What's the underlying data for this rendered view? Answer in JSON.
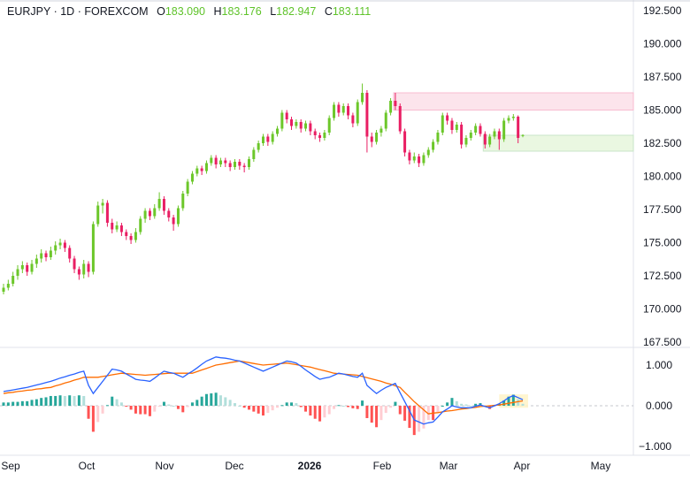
{
  "header": {
    "symbol": "EURJPY",
    "sep1": "·",
    "interval": "1D",
    "sep2": "·",
    "exchange": "FOREXCOM",
    "o_label": "O",
    "o": "183.090",
    "h_label": "H",
    "h": "183.176",
    "l_label": "L",
    "l": "182.947",
    "c_label": "C",
    "c": "183.111"
  },
  "colors": {
    "up": "#6cc72a",
    "down": "#e91e63",
    "macd": "#2962ff",
    "signal": "#ff6d00",
    "hist_up_strong": "#26a69a",
    "hist_up_weak": "#b2dfdb",
    "hist_down_strong": "#ff5252",
    "hist_down_weak": "#ffcdd2",
    "supply_zone": "#fce4ec",
    "demand_zone": "#eaf7e1"
  },
  "time_axis": [
    {
      "label": "Sep"
    },
    {
      "label": "Oct"
    },
    {
      "label": "Nov"
    },
    {
      "label": "Dec"
    },
    {
      "label": "2026",
      "bold": true
    },
    {
      "label": "Feb"
    },
    {
      "label": "Mar"
    },
    {
      "label": "Apr"
    },
    {
      "label": "May"
    }
  ],
  "price_axis": [
    "192.500",
    "190.000",
    "187.500",
    "185.000",
    "182.500",
    "180.000",
    "177.500",
    "175.000",
    "172.500",
    "170.000",
    "167.500"
  ],
  "macd_axis": [
    "1.000",
    "0.000",
    "−1.000"
  ],
  "chart_data": [
    {
      "type": "candlestick",
      "ylim": [
        167.5,
        192.5
      ],
      "zones": [
        {
          "kind": "supply",
          "from": 185.0,
          "to": 186.3
        },
        {
          "kind": "demand",
          "from": 181.9,
          "to": 183.1
        }
      ],
      "candles_ohlc": [
        [
          171.3,
          171.9,
          171.1,
          171.6
        ],
        [
          171.6,
          172.2,
          171.4,
          171.9
        ],
        [
          171.9,
          172.8,
          171.7,
          172.5
        ],
        [
          172.5,
          173.3,
          172.2,
          173.0
        ],
        [
          173.0,
          173.6,
          172.7,
          173.3
        ],
        [
          173.3,
          173.5,
          172.5,
          172.8
        ],
        [
          172.8,
          173.7,
          172.6,
          173.4
        ],
        [
          173.4,
          174.1,
          173.1,
          173.8
        ],
        [
          173.8,
          174.5,
          173.5,
          174.2
        ],
        [
          174.2,
          174.4,
          173.6,
          173.9
        ],
        [
          173.9,
          174.7,
          173.7,
          174.4
        ],
        [
          174.4,
          175.1,
          174.1,
          174.8
        ],
        [
          174.8,
          175.3,
          174.5,
          175.0
        ],
        [
          175.0,
          175.2,
          174.3,
          174.6
        ],
        [
          174.6,
          174.8,
          173.5,
          173.8
        ],
        [
          173.8,
          174.0,
          172.7,
          173.0
        ],
        [
          173.0,
          173.2,
          172.2,
          172.6
        ],
        [
          172.6,
          173.7,
          172.3,
          173.4
        ],
        [
          173.4,
          173.6,
          172.4,
          172.8
        ],
        [
          172.8,
          176.6,
          172.6,
          176.4
        ],
        [
          176.4,
          178.1,
          176.2,
          177.8
        ],
        [
          177.8,
          178.3,
          177.2,
          178.0
        ],
        [
          178.0,
          178.2,
          176.2,
          176.5
        ],
        [
          176.5,
          176.8,
          175.7,
          176.0
        ],
        [
          176.0,
          176.6,
          175.8,
          176.3
        ],
        [
          176.3,
          176.5,
          175.5,
          175.8
        ],
        [
          175.8,
          176.0,
          175.2,
          175.5
        ],
        [
          175.5,
          175.7,
          174.9,
          175.2
        ],
        [
          175.2,
          176.1,
          175.0,
          175.8
        ],
        [
          175.8,
          177.0,
          175.6,
          176.8
        ],
        [
          176.8,
          177.6,
          176.5,
          177.4
        ],
        [
          177.4,
          177.6,
          176.7,
          177.0
        ],
        [
          177.0,
          177.9,
          176.8,
          177.6
        ],
        [
          177.6,
          178.8,
          177.4,
          178.3
        ],
        [
          178.3,
          178.5,
          177.1,
          177.4
        ],
        [
          177.4,
          177.6,
          176.6,
          176.9
        ],
        [
          176.9,
          177.1,
          175.9,
          176.4
        ],
        [
          176.4,
          177.8,
          176.2,
          177.6
        ],
        [
          177.6,
          178.9,
          177.4,
          178.7
        ],
        [
          178.7,
          179.8,
          178.5,
          179.6
        ],
        [
          179.6,
          180.4,
          179.4,
          180.2
        ],
        [
          180.2,
          180.8,
          180.0,
          180.6
        ],
        [
          180.6,
          180.8,
          180.1,
          180.4
        ],
        [
          180.4,
          181.2,
          180.2,
          181.0
        ],
        [
          181.0,
          181.6,
          180.8,
          181.4
        ],
        [
          181.4,
          181.6,
          180.6,
          180.9
        ],
        [
          180.9,
          181.4,
          180.7,
          181.2
        ],
        [
          181.2,
          181.4,
          180.7,
          181.0
        ],
        [
          181.0,
          181.2,
          180.4,
          180.7
        ],
        [
          180.7,
          181.3,
          180.5,
          181.1
        ],
        [
          181.1,
          181.3,
          180.5,
          180.8
        ],
        [
          180.8,
          181.0,
          180.3,
          180.7
        ],
        [
          180.7,
          181.5,
          180.5,
          181.3
        ],
        [
          181.3,
          182.2,
          181.1,
          182.0
        ],
        [
          182.0,
          182.7,
          181.8,
          182.5
        ],
        [
          182.5,
          183.2,
          182.3,
          183.0
        ],
        [
          183.0,
          183.2,
          182.3,
          182.6
        ],
        [
          182.6,
          183.4,
          182.4,
          183.2
        ],
        [
          183.2,
          183.8,
          183.0,
          183.6
        ],
        [
          183.6,
          185.0,
          183.4,
          184.8
        ],
        [
          184.8,
          185.0,
          184.0,
          184.3
        ],
        [
          184.3,
          184.5,
          183.5,
          183.8
        ],
        [
          183.8,
          184.3,
          183.6,
          184.1
        ],
        [
          184.1,
          184.3,
          183.3,
          183.6
        ],
        [
          183.6,
          184.2,
          183.4,
          184.0
        ],
        [
          184.0,
          184.2,
          183.1,
          183.4
        ],
        [
          183.4,
          183.6,
          182.8,
          183.1
        ],
        [
          183.1,
          183.3,
          182.6,
          182.9
        ],
        [
          182.9,
          183.5,
          182.7,
          183.3
        ],
        [
          183.3,
          184.6,
          183.1,
          184.4
        ],
        [
          184.4,
          185.6,
          184.2,
          185.4
        ],
        [
          185.4,
          185.6,
          184.5,
          184.8
        ],
        [
          184.8,
          185.5,
          184.6,
          185.3
        ],
        [
          185.3,
          185.5,
          184.3,
          184.6
        ],
        [
          184.6,
          184.8,
          183.7,
          184.0
        ],
        [
          184.0,
          185.8,
          183.8,
          185.6
        ],
        [
          185.6,
          187.0,
          185.4,
          186.3
        ],
        [
          186.3,
          186.5,
          181.8,
          183.0
        ],
        [
          183.0,
          183.3,
          182.2,
          182.6
        ],
        [
          182.6,
          183.5,
          182.4,
          183.3
        ],
        [
          183.3,
          183.8,
          183.0,
          183.6
        ],
        [
          183.6,
          185.0,
          183.4,
          184.8
        ],
        [
          184.8,
          185.9,
          184.6,
          185.7
        ],
        [
          185.7,
          186.3,
          185.0,
          185.3
        ],
        [
          185.3,
          185.5,
          183.2,
          183.4
        ],
        [
          183.4,
          183.6,
          181.5,
          181.8
        ],
        [
          181.8,
          182.0,
          180.9,
          181.2
        ],
        [
          181.2,
          181.8,
          181.0,
          181.5
        ],
        [
          181.5,
          181.7,
          180.7,
          181.0
        ],
        [
          181.0,
          181.8,
          180.8,
          181.6
        ],
        [
          181.6,
          182.2,
          181.4,
          182.0
        ],
        [
          182.0,
          182.8,
          181.8,
          182.6
        ],
        [
          182.6,
          183.5,
          182.4,
          183.3
        ],
        [
          183.3,
          184.8,
          183.1,
          184.6
        ],
        [
          184.6,
          184.8,
          183.9,
          184.2
        ],
        [
          184.2,
          184.4,
          183.2,
          183.5
        ],
        [
          183.5,
          184.1,
          183.3,
          183.9
        ],
        [
          183.9,
          184.1,
          182.1,
          182.4
        ],
        [
          182.4,
          183.1,
          182.2,
          182.9
        ],
        [
          182.9,
          183.5,
          182.7,
          183.3
        ],
        [
          183.3,
          184.0,
          183.1,
          183.8
        ],
        [
          183.8,
          184.0,
          183.0,
          183.2
        ],
        [
          183.2,
          183.4,
          182.1,
          182.4
        ],
        [
          182.4,
          183.2,
          182.2,
          183.0
        ],
        [
          183.0,
          183.6,
          182.8,
          183.4
        ],
        [
          183.4,
          183.6,
          182.0,
          182.8
        ],
        [
          182.8,
          184.4,
          182.6,
          184.2
        ],
        [
          184.2,
          184.6,
          184.0,
          184.4
        ],
        [
          184.4,
          184.7,
          184.2,
          184.5
        ],
        [
          184.5,
          184.6,
          182.5,
          182.9
        ],
        [
          183.09,
          183.176,
          182.947,
          183.111
        ]
      ]
    },
    {
      "type": "line",
      "ylim": [
        -1.15,
        1.45
      ],
      "series": [
        {
          "key": "macd",
          "values": [
            0.35,
            0.37,
            0.39,
            0.41,
            0.43,
            0.45,
            0.48,
            0.51,
            0.54,
            0.57,
            0.6,
            0.64,
            0.68,
            0.71,
            0.75,
            0.78,
            0.82,
            0.85,
            0.5,
            0.3,
            0.45,
            0.6,
            0.75,
            0.9,
            0.88,
            0.85,
            0.78,
            0.72,
            0.65,
            0.63,
            0.62,
            0.6,
            0.68,
            0.77,
            0.85,
            0.82,
            0.8,
            0.75,
            0.7,
            0.78,
            0.85,
            0.93,
            1.02,
            1.1,
            1.15,
            1.2,
            1.18,
            1.17,
            1.15,
            1.12,
            1.1,
            1.05,
            1.0,
            0.95,
            0.9,
            0.85,
            0.9,
            0.95,
            1.0,
            1.05,
            1.1,
            1.08,
            1.05,
            0.97,
            0.88,
            0.8,
            0.72,
            0.65,
            0.68,
            0.7,
            0.75,
            0.8,
            0.78,
            0.75,
            0.72,
            0.7,
            0.8,
            0.5,
            0.4,
            0.3,
            0.38,
            0.45,
            0.5,
            0.55,
            0.32,
            0.1,
            -0.12,
            -0.35,
            -0.4,
            -0.45,
            -0.42,
            -0.4,
            -0.28,
            -0.15,
            -0.08,
            0.0,
            -0.03,
            -0.05,
            -0.05,
            -0.05,
            -0.01,
            0.02,
            -0.02,
            -0.05,
            0.0,
            0.05,
            0.12,
            0.2,
            0.25,
            0.2,
            0.15
          ]
        },
        {
          "key": "signal",
          "values": [
            0.3,
            0.32,
            0.33,
            0.35,
            0.36,
            0.38,
            0.39,
            0.41,
            0.42,
            0.44,
            0.45,
            0.49,
            0.52,
            0.56,
            0.59,
            0.63,
            0.66,
            0.7,
            0.7,
            0.7,
            0.7,
            0.72,
            0.74,
            0.76,
            0.78,
            0.8,
            0.79,
            0.78,
            0.77,
            0.76,
            0.75,
            0.76,
            0.77,
            0.78,
            0.79,
            0.8,
            0.8,
            0.8,
            0.8,
            0.8,
            0.8,
            0.84,
            0.88,
            0.92,
            0.96,
            1.0,
            1.02,
            1.04,
            1.06,
            1.08,
            1.1,
            1.08,
            1.06,
            1.04,
            1.02,
            1.0,
            1.01,
            1.02,
            1.03,
            1.04,
            1.05,
            1.03,
            1.01,
            0.99,
            0.97,
            0.95,
            0.92,
            0.89,
            0.86,
            0.83,
            0.8,
            0.79,
            0.78,
            0.77,
            0.76,
            0.75,
            0.72,
            0.69,
            0.66,
            0.63,
            0.6,
            0.56,
            0.53,
            0.49,
            0.45,
            0.33,
            0.22,
            0.1,
            0.0,
            -0.1,
            -0.2,
            -0.18,
            -0.17,
            -0.15,
            -0.13,
            -0.12,
            -0.1,
            -0.08,
            -0.07,
            -0.05,
            -0.04,
            -0.02,
            -0.01,
            0.0,
            0.01,
            0.02,
            0.04,
            0.06,
            0.08,
            0.1,
            0.12
          ]
        }
      ]
    }
  ]
}
